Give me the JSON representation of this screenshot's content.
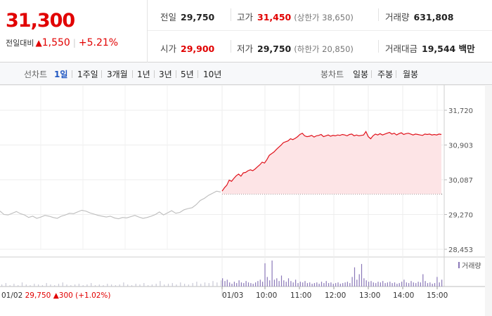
{
  "quote": {
    "price": "31,300",
    "change_label": "전일대비",
    "change_arrow": "▲",
    "change_amount": "1,550",
    "change_rate": "+5.21%",
    "colors": {
      "up": "#e10000",
      "neutral": "#222222"
    }
  },
  "stats": {
    "prev_close": {
      "label": "전일",
      "value": "29,750"
    },
    "high": {
      "label": "고가",
      "value": "31,450",
      "sub": "(상한가 38,650)"
    },
    "volume": {
      "label": "거래량",
      "value": "631,808"
    },
    "open": {
      "label": "시가",
      "value": "29,900"
    },
    "low": {
      "label": "저가",
      "value": "29,750",
      "sub": "(하한가 20,850)"
    },
    "trade_value": {
      "label": "거래대금",
      "value": "19,544 백만"
    }
  },
  "tabs": {
    "line_label": "선차트",
    "line": [
      "1일",
      "1주일",
      "3개월",
      "1년",
      "3년",
      "5년",
      "10년"
    ],
    "line_active": "1일",
    "candle_label": "봉차트",
    "candle": [
      "일봉",
      "주봉",
      "월봉"
    ]
  },
  "chart_data": {
    "type": "line",
    "y_ticks": [
      "31,720",
      "30,903",
      "30,087",
      "29,270",
      "28,453"
    ],
    "ylim": [
      28453,
      31720
    ],
    "reference_price": 29750,
    "x_ticks": [
      "01/03",
      "10:00",
      "11:00",
      "12:00",
      "13:00",
      "14:00",
      "15:00"
    ],
    "prev_day": {
      "date": "01/02",
      "close": "29,750",
      "arrow": "▲",
      "change": "300",
      "rate": "(+1.02%)",
      "values": [
        29350,
        29270,
        29260,
        29300,
        29340,
        29290,
        29260,
        29200,
        29230,
        29180,
        29210,
        29250,
        29230,
        29200,
        29180,
        29230,
        29260,
        29300,
        29290,
        29330,
        29370,
        29350,
        29310,
        29280,
        29250,
        29230,
        29210,
        29230,
        29190,
        29170,
        29200,
        29190,
        29220,
        29250,
        29210,
        29180,
        29200,
        29230,
        29270,
        29330,
        29260,
        29310,
        29360,
        29300,
        29320,
        29380,
        29410,
        29430,
        29500,
        29600,
        29650,
        29720,
        29770,
        29820,
        29800
      ]
    },
    "today": {
      "values": [
        29820,
        29900,
        29960,
        30080,
        30050,
        30120,
        30180,
        30220,
        30170,
        30250,
        30260,
        30300,
        30320,
        30300,
        30340,
        30390,
        30440,
        30500,
        30480,
        30560,
        30660,
        30700,
        30740,
        30800,
        30850,
        30900,
        30960,
        30980,
        31000,
        31050,
        31030,
        31060,
        31100,
        31150,
        31180,
        31120,
        31100,
        31110,
        31130,
        31090,
        31120,
        31130,
        31150,
        31100,
        31120,
        31140,
        31110,
        31130,
        31120,
        31140,
        31130,
        31150,
        31140,
        31120,
        31150,
        31160,
        31120,
        31140,
        31120,
        31130,
        31140,
        31220,
        31100,
        31050,
        31120,
        31160,
        31140,
        31170,
        31140,
        31160,
        31180,
        31200,
        31160,
        31180,
        31140,
        31170,
        31190,
        31150,
        31170,
        31180,
        31160,
        31140,
        31160,
        31150,
        31140,
        31130,
        31160,
        31150,
        31160,
        31140,
        31150,
        31140,
        31160,
        31150
      ]
    },
    "volume_label": "거래량",
    "volume": {
      "prev_day": [
        3,
        5,
        2,
        4,
        2,
        6,
        3,
        2,
        4,
        3,
        2,
        5,
        3,
        2,
        4,
        6,
        3,
        2,
        3,
        4,
        2,
        3,
        5,
        2,
        3,
        2,
        4,
        3,
        2,
        3,
        6,
        3,
        2,
        4,
        3,
        5,
        2,
        3,
        4,
        8,
        3,
        4,
        5,
        3,
        6,
        4,
        3,
        5,
        7,
        4,
        6,
        5,
        8,
        6,
        9
      ],
      "today": [
        12,
        8,
        10,
        6,
        4,
        7,
        5,
        9,
        6,
        5,
        8,
        6,
        5,
        4,
        6,
        8,
        10,
        7,
        34,
        14,
        9,
        38,
        10,
        12,
        8,
        16,
        9,
        7,
        12,
        8,
        6,
        10,
        5,
        7,
        6,
        8,
        5,
        6,
        4,
        5,
        6,
        4,
        7,
        5,
        8,
        5,
        6,
        4,
        5,
        6,
        4,
        5,
        6,
        7,
        5,
        14,
        28,
        10,
        18,
        33,
        12,
        9,
        7,
        8,
        6,
        5,
        7,
        6,
        8,
        5,
        6,
        7,
        5,
        6,
        4,
        5,
        7,
        10,
        6,
        5,
        8,
        6,
        5,
        7,
        6,
        18,
        8,
        5,
        6,
        4,
        5,
        14,
        6,
        10
      ]
    }
  }
}
